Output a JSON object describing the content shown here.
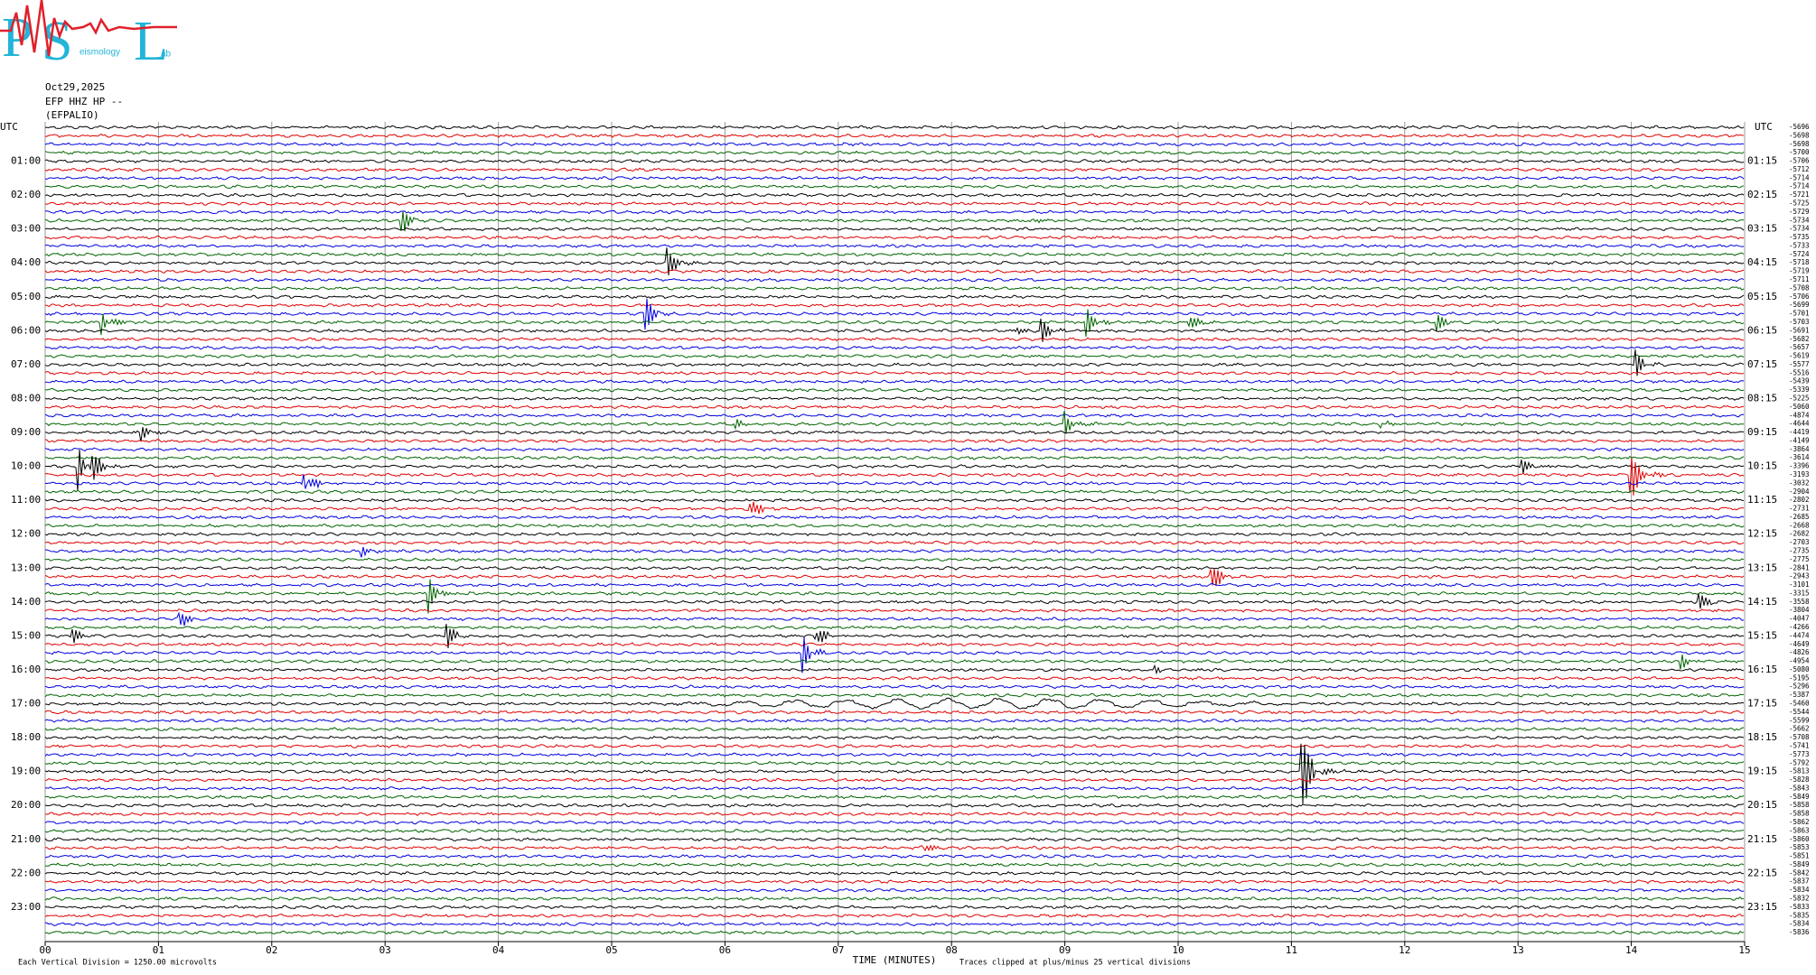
{
  "logo": {
    "letters": [
      "P",
      "S",
      "L"
    ],
    "fragments": [
      "eismology",
      "ab"
    ]
  },
  "header": {
    "date": "Oct29,2025",
    "channel": "EFP HHZ HP --",
    "station": "(EFPALIO)"
  },
  "axis": {
    "utc_left": "UTC",
    "utc_right": "UTC",
    "left_hours": [
      "01:00",
      "02:00",
      "03:00",
      "04:00",
      "05:00",
      "06:00",
      "07:00",
      "08:00",
      "09:00",
      "10:00",
      "11:00",
      "12:00",
      "13:00",
      "14:00",
      "15:00",
      "16:00",
      "17:00",
      "18:00",
      "19:00",
      "20:00",
      "21:00",
      "22:00",
      "23:00"
    ],
    "right_hours": [
      "01:15",
      "02:15",
      "03:15",
      "04:15",
      "05:15",
      "06:15",
      "07:15",
      "08:15",
      "09:15",
      "10:15",
      "11:15",
      "12:15",
      "13:15",
      "14:15",
      "15:15",
      "16:15",
      "17:15",
      "18:15",
      "19:15",
      "20:15",
      "21:15",
      "22:15",
      "23:15"
    ],
    "x_ticks": [
      "00",
      "01",
      "02",
      "03",
      "04",
      "05",
      "06",
      "07",
      "08",
      "09",
      "10",
      "11",
      "12",
      "13",
      "14",
      "15"
    ],
    "x_title": "TIME (MINUTES)"
  },
  "offsets": [
    -5696,
    -5698,
    -5698,
    -5700,
    -5706,
    -5712,
    -5714,
    -5714,
    -5721,
    -5725,
    -5729,
    -5734,
    -5734,
    -5735,
    -5733,
    -5724,
    -5718,
    -5719,
    -5711,
    -5708,
    -5706,
    -5699,
    -5701,
    -5703,
    -5691,
    -5682,
    -5657,
    -5619,
    -5577,
    -5516,
    -5439,
    -5339,
    -5225,
    -5060,
    -4874,
    -4644,
    -4419,
    -4149,
    -3864,
    -3614,
    -3396,
    -3193,
    -3032,
    -2904,
    -2802,
    -2731,
    -2685,
    -2668,
    -2682,
    -2703,
    -2735,
    -2775,
    -2841,
    -2943,
    -3101,
    -3315,
    -3558,
    -3804,
    -4047,
    -4266,
    -4474,
    -4649,
    -4826,
    -4954,
    -5080,
    -5195,
    -5296,
    -5387,
    -5460,
    -5544,
    -5599,
    -5662,
    -5708,
    -5741,
    -5773,
    -5792,
    -5813,
    -5828,
    -5843,
    -5849,
    -5858,
    -5858,
    -5862,
    -5863,
    -5860,
    -5853,
    -5851,
    -5849,
    -5842,
    -5837,
    -5834,
    -5832,
    -5833,
    -5835,
    -5834,
    -5836
  ],
  "footer": {
    "left": "Each Vertical Division = 1250.00 microvolts",
    "right": "Traces clipped at plus/minus 25 vertical divisions"
  }
}
